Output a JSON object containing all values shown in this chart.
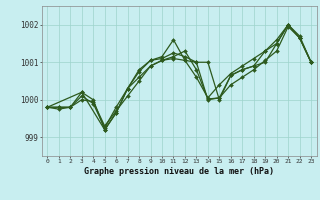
{
  "bg_color": "#c8eef0",
  "grid_color": "#9dd4cc",
  "line_color": "#2d5a1e",
  "marker_color": "#2d5a1e",
  "title": "Graphe pression niveau de la mer (hPa)",
  "xlim": [
    -0.5,
    23.5
  ],
  "ylim": [
    998.5,
    1002.5
  ],
  "yticks": [
    999,
    1000,
    1001,
    1002
  ],
  "xticks": [
    0,
    1,
    2,
    3,
    4,
    5,
    6,
    7,
    8,
    9,
    10,
    11,
    12,
    13,
    14,
    15,
    16,
    17,
    18,
    19,
    20,
    21,
    22,
    23
  ],
  "line1_x": [
    0,
    1,
    2,
    3,
    4,
    5,
    6,
    7,
    8,
    9,
    10,
    11,
    12,
    13,
    14,
    15,
    16,
    17,
    18,
    19,
    20,
    21,
    22,
    23
  ],
  "line1_y": [
    999.8,
    999.75,
    999.8,
    1000.2,
    1000.0,
    999.2,
    999.65,
    1000.3,
    1000.8,
    1001.05,
    1001.15,
    1001.6,
    1001.05,
    1001.0,
    1000.0,
    1000.05,
    1000.65,
    1000.8,
    1000.9,
    1001.0,
    1001.5,
    1002.0,
    1001.65,
    1001.0
  ],
  "line2_x": [
    0,
    3,
    5,
    6,
    7,
    8,
    9,
    10,
    11,
    12,
    13,
    14,
    15,
    16,
    17,
    18,
    19,
    20,
    21,
    22,
    23
  ],
  "line2_y": [
    999.8,
    1000.2,
    999.2,
    999.65,
    1000.3,
    1000.75,
    1001.05,
    1001.1,
    1001.25,
    1001.15,
    1001.0,
    1001.0,
    1000.0,
    1000.65,
    1000.8,
    1000.9,
    1001.3,
    1001.5,
    1002.0,
    1001.65,
    1001.0
  ],
  "line3_x": [
    0,
    1,
    2,
    3,
    4,
    5,
    6,
    7,
    8,
    9,
    10,
    11,
    12,
    13,
    14,
    15,
    16,
    17,
    18,
    19,
    20,
    21,
    22,
    23
  ],
  "line3_y": [
    999.8,
    999.8,
    999.8,
    1000.1,
    999.9,
    999.25,
    999.8,
    1000.3,
    1000.6,
    1000.9,
    1001.05,
    1001.1,
    1001.05,
    1000.6,
    1000.05,
    1000.4,
    1000.7,
    1000.9,
    1001.1,
    1001.3,
    1001.6,
    1002.0,
    1001.7,
    1001.0
  ],
  "line4_x": [
    0,
    1,
    2,
    3,
    4,
    5,
    6,
    7,
    8,
    9,
    10,
    11,
    12,
    13,
    14,
    15,
    16,
    17,
    18,
    19,
    20,
    21,
    22,
    23
  ],
  "line4_y": [
    999.8,
    999.8,
    999.8,
    1000.0,
    999.95,
    999.3,
    999.7,
    1000.1,
    1000.5,
    1000.9,
    1001.05,
    1001.15,
    1001.3,
    1000.8,
    1000.02,
    1000.05,
    1000.4,
    1000.6,
    1000.8,
    1001.05,
    1001.3,
    1001.95,
    1001.65,
    1001.0
  ]
}
